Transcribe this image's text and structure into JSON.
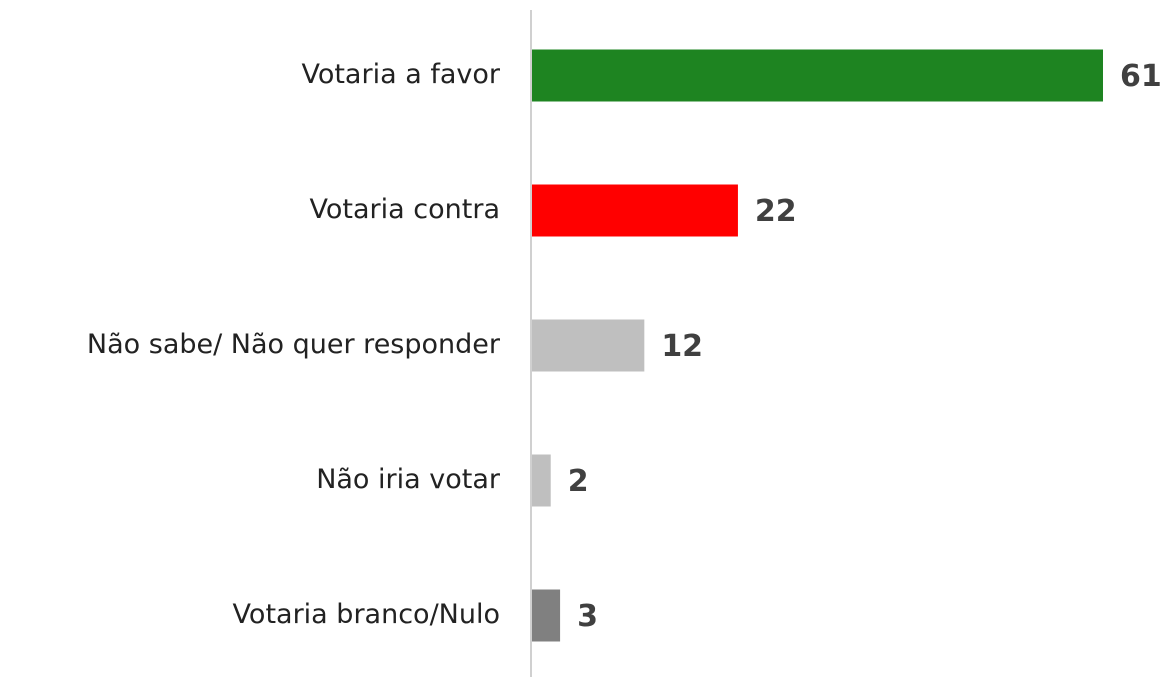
{
  "chart_data": {
    "type": "barh",
    "categories": [
      "Votaria a favor",
      "Votaria contra",
      "Não sabe/ Não quer responder",
      "Não iria votar",
      "Votaria branco/Nulo"
    ],
    "values": [
      61,
      22,
      12,
      2,
      3
    ],
    "colors": [
      "#1e8421",
      "#ff0000",
      "#bfbfbf",
      "#bfbfbf",
      "#808080"
    ]
  }
}
